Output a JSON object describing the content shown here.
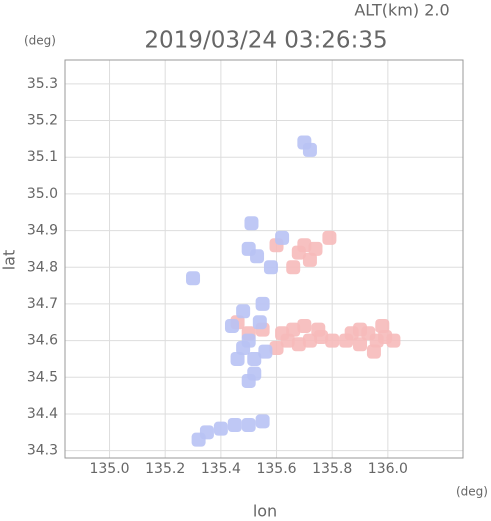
{
  "chart_data": {
    "type": "scatter",
    "title": "2019/03/24 03:26:35",
    "subtitle": "ALT(km) 2.0",
    "x_label": "lon",
    "y_label": "lat",
    "x_unit": "(deg)",
    "y_unit": "(deg)",
    "xlim": [
      134.84,
      136.27
    ],
    "ylim": [
      34.28,
      35.365
    ],
    "xticks": [
      {
        "value": 135,
        "label": "135.0"
      },
      135.2,
      135.4,
      135.6,
      135.8,
      {
        "value": 136,
        "label": "136.0"
      }
    ],
    "yticks": [
      34.3,
      34.4,
      34.5,
      34.6,
      34.7,
      34.8,
      34.9,
      {
        "value": 35,
        "label": "35.0"
      },
      35.1,
      35.2,
      35.3
    ],
    "grid": true,
    "series": [
      {
        "color": "#f6baba",
        "x": [
          135.87,
          135.9,
          135.93,
          135.96,
          135.99,
          135.9,
          135.95,
          135.85,
          135.8,
          135.76,
          135.72,
          135.68,
          135.64,
          135.6,
          135.62,
          135.66,
          135.7,
          135.75,
          135.55,
          135.5,
          135.46,
          135.68,
          135.7,
          135.72,
          135.66,
          135.74,
          135.79,
          135.6,
          135.98,
          136.02
        ],
        "values": [
          34.62,
          34.63,
          34.62,
          34.6,
          34.61,
          34.59,
          34.57,
          34.6,
          34.6,
          34.61,
          34.6,
          34.59,
          34.6,
          34.58,
          34.62,
          34.63,
          34.64,
          34.63,
          34.63,
          34.62,
          34.65,
          34.84,
          34.86,
          34.82,
          34.8,
          34.85,
          34.88,
          34.86,
          34.64,
          34.6
        ]
      },
      {
        "color": "#b8c2f4",
        "x": [
          135.7,
          135.72,
          135.5,
          135.52,
          135.48,
          135.54,
          135.52,
          135.5,
          135.48,
          135.44,
          135.56,
          135.53,
          135.5,
          135.58,
          135.62,
          135.3,
          135.35,
          135.4,
          135.45,
          135.5,
          135.55,
          135.32,
          135.51,
          135.55,
          135.46
        ],
        "values": [
          35.14,
          35.12,
          34.6,
          34.55,
          34.58,
          34.65,
          34.51,
          34.49,
          34.68,
          34.64,
          34.57,
          34.83,
          34.85,
          34.8,
          34.88,
          34.77,
          34.35,
          34.36,
          34.37,
          34.37,
          34.38,
          34.33,
          34.92,
          34.7,
          34.55
        ]
      }
    ]
  }
}
